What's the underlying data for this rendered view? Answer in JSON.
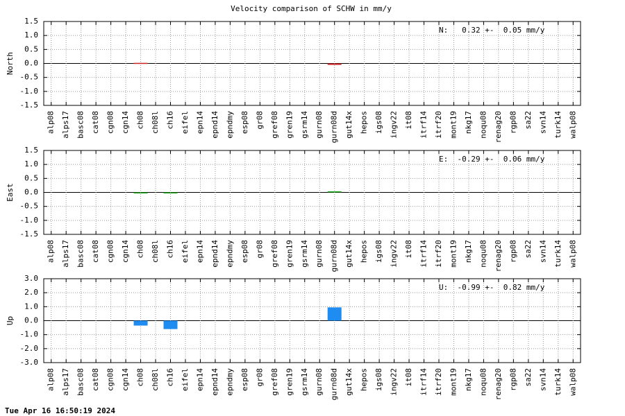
{
  "title": "Velocity comparison of SCHW in mm/y",
  "footer": "Tue Apr 16 16:50:19 2024",
  "chart_data": [
    {
      "type": "bar",
      "ylabel": "North",
      "annotation": "N:   0.32 +-  0.05 mm/y",
      "color": "#cc2222",
      "grid": true,
      "categories": [
        "alp08",
        "alps17",
        "basc08",
        "cat08",
        "cgn08",
        "cgn14",
        "ch08",
        "ch08l",
        "ch16",
        "eifel",
        "epn14",
        "epnd14",
        "epndmy",
        "esp08",
        "gr08",
        "gref08",
        "gren19",
        "gsrm14",
        "gurn08",
        "gurn08d",
        "gut14x",
        "hepos",
        "igs08",
        "ingv22",
        "it08",
        "itrf14",
        "itrf20",
        "mont19",
        "nkg17",
        "noqu08",
        "renag20",
        "rgp08",
        "sa22",
        "svn14",
        "turk14",
        "walp08"
      ],
      "values": [
        null,
        null,
        null,
        null,
        null,
        null,
        0.02,
        null,
        null,
        null,
        null,
        null,
        null,
        null,
        null,
        null,
        null,
        null,
        null,
        -0.05,
        null,
        null,
        null,
        null,
        null,
        null,
        null,
        null,
        null,
        null,
        null,
        null,
        null,
        null,
        null,
        null
      ],
      "ylim": [
        -1.5,
        1.5
      ],
      "yticks": [
        -1.5,
        {
          "value": -1,
          "label": "-1.0"
        },
        -0.5,
        {
          "value": 0,
          "label": "0.0"
        },
        0.5,
        {
          "value": 1,
          "label": "1.0"
        },
        1.5
      ]
    },
    {
      "type": "bar",
      "ylabel": "East",
      "annotation": "E:  -0.29 +-  0.06 mm/y",
      "color": "#22aa22",
      "grid": true,
      "categories": [
        "alp08",
        "alps17",
        "basc08",
        "cat08",
        "cgn08",
        "cgn14",
        "ch08",
        "ch08l",
        "ch16",
        "eifel",
        "epn14",
        "epnd14",
        "epndmy",
        "esp08",
        "gr08",
        "gref08",
        "gren19",
        "gsrm14",
        "gurn08",
        "gurn08d",
        "gut14x",
        "hepos",
        "igs08",
        "ingv22",
        "it08",
        "itrf14",
        "itrf20",
        "mont19",
        "nkg17",
        "noqu08",
        "renag20",
        "rgp08",
        "sa22",
        "svn14",
        "turk14",
        "walp08"
      ],
      "values": [
        null,
        null,
        null,
        null,
        null,
        null,
        -0.03,
        null,
        -0.02,
        null,
        null,
        null,
        null,
        null,
        null,
        null,
        null,
        null,
        null,
        0.04,
        null,
        null,
        null,
        null,
        null,
        null,
        null,
        null,
        null,
        null,
        null,
        null,
        null,
        null,
        null,
        null
      ],
      "ylim": [
        -1.5,
        1.5
      ],
      "yticks": [
        -1.5,
        {
          "value": -1,
          "label": "-1.0"
        },
        -0.5,
        {
          "value": 0,
          "label": "0.0"
        },
        0.5,
        {
          "value": 1,
          "label": "1.0"
        },
        1.5
      ]
    },
    {
      "type": "bar",
      "ylabel": "Up",
      "annotation": "U:  -0.99 +-  0.82 mm/y",
      "color": "#1e8cf0",
      "grid": true,
      "categories": [
        "alp08",
        "alps17",
        "basc08",
        "cat08",
        "cgn08",
        "cgn14",
        "ch08",
        "ch08l",
        "ch16",
        "eifel",
        "epn14",
        "epnd14",
        "epndmy",
        "esp08",
        "gr08",
        "gref08",
        "gren19",
        "gsrm14",
        "gurn08",
        "gurn08d",
        "gut14x",
        "hepos",
        "igs08",
        "ingv22",
        "it08",
        "itrf14",
        "itrf20",
        "mont19",
        "nkg17",
        "noqu08",
        "renag20",
        "rgp08",
        "sa22",
        "svn14",
        "turk14",
        "walp08"
      ],
      "values": [
        null,
        null,
        null,
        null,
        null,
        null,
        -0.35,
        null,
        -0.6,
        null,
        null,
        null,
        null,
        null,
        null,
        null,
        null,
        null,
        null,
        0.95,
        null,
        null,
        null,
        null,
        null,
        null,
        null,
        null,
        null,
        null,
        null,
        null,
        null,
        null,
        null,
        null
      ],
      "ylim": [
        -3,
        3
      ],
      "yticks": [
        {
          "value": -3,
          "label": "-3.0"
        },
        {
          "value": -2,
          "label": "-2.0"
        },
        {
          "value": -1,
          "label": "-1.0"
        },
        {
          "value": 0,
          "label": "0.0"
        },
        {
          "value": 1,
          "label": "1.0"
        },
        {
          "value": 2,
          "label": "2.0"
        },
        {
          "value": 3,
          "label": "3.0"
        }
      ]
    }
  ]
}
